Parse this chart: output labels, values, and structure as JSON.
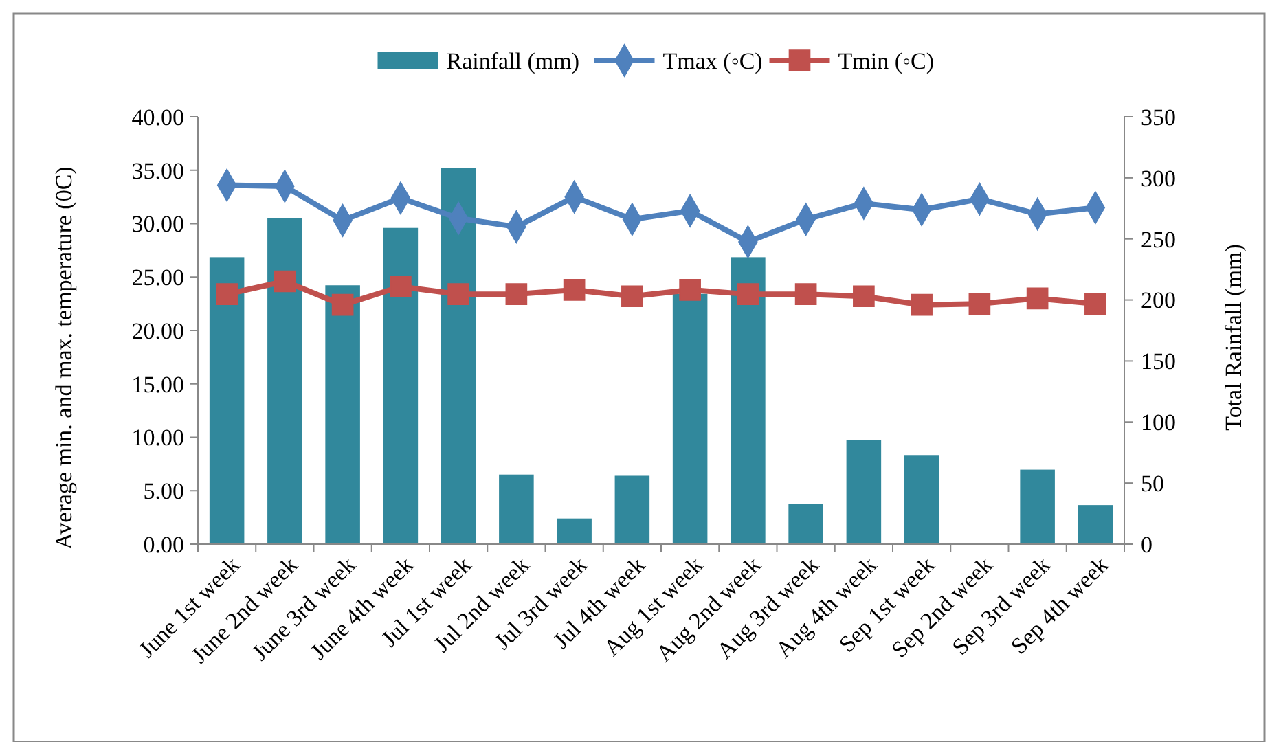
{
  "chart_data": {
    "type": "line",
    "ylabel": "Average min. and max. temperature (0C)",
    "y2label": "Total Rainfall (mm)",
    "categories": [
      "June 1st week",
      "June 2nd week",
      "June 3rd week",
      "June 4th week",
      "Jul 1st week",
      "Jul 2nd week",
      "Jul 3rd week",
      "Jul 4th week",
      "Aug 1st week",
      "Aug 2nd week",
      "Aug 3rd week",
      "Aug 4th week",
      "Sep 1st week",
      "Sep 2nd week",
      "Sep 3rd week",
      "Sep 4th week"
    ],
    "series": [
      {
        "name": "Rainfall (mm)",
        "type": "bar",
        "axis": "y2",
        "color": "#31889c",
        "values": [
          235,
          267,
          212,
          259,
          308,
          57,
          21,
          56,
          205,
          235,
          33,
          85,
          73,
          0,
          61,
          32
        ]
      },
      {
        "name": "Tmax (◦C)",
        "marker": "diamond",
        "color": "#4f81bd",
        "values": [
          33.6,
          33.5,
          30.3,
          32.4,
          30.5,
          29.7,
          32.5,
          30.4,
          31.2,
          28.3,
          30.4,
          31.9,
          31.3,
          32.3,
          30.9,
          31.5
        ]
      },
      {
        "name": "Tmin (◦C)",
        "marker": "square",
        "color": "#c0504d",
        "values": [
          23.4,
          24.6,
          22.4,
          24.1,
          23.4,
          23.4,
          23.8,
          23.2,
          23.8,
          23.4,
          23.4,
          23.2,
          22.4,
          22.5,
          23.0,
          22.5
        ]
      }
    ],
    "ylim": [
      0,
      40
    ],
    "yticks": [
      {
        "value": 0,
        "label": "0.00"
      },
      {
        "value": 5,
        "label": "5.00"
      },
      {
        "value": 10,
        "label": "10.00"
      },
      {
        "value": 15,
        "label": "15.00"
      },
      {
        "value": 20,
        "label": "20.00"
      },
      {
        "value": 25,
        "label": "25.00"
      },
      {
        "value": 30,
        "label": "30.00"
      },
      {
        "value": 35,
        "label": "35.00"
      },
      {
        "value": 40,
        "label": "40.00"
      }
    ],
    "y2lim": [
      0,
      350
    ],
    "y2ticks": [
      0,
      50,
      100,
      150,
      200,
      250,
      300,
      350
    ],
    "legend": "top",
    "grid": false
  }
}
